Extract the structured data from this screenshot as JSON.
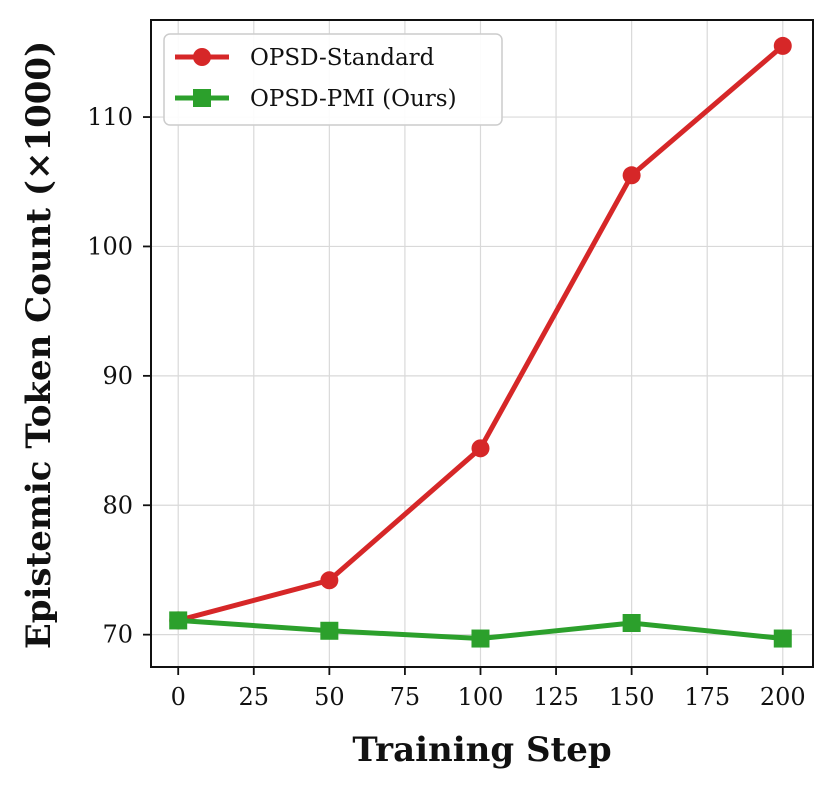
{
  "chart_data": {
    "type": "line",
    "title": "",
    "xlabel": "Training Step",
    "ylabel": "Epistemic Token Count (×1000)",
    "x": [
      0,
      50,
      100,
      150,
      200
    ],
    "xticks": [
      "0",
      "25",
      "50",
      "75",
      "100",
      "125",
      "150",
      "175",
      "200"
    ],
    "yticks": [
      "70",
      "80",
      "90",
      "100",
      "110"
    ],
    "xlim": [
      -9,
      210
    ],
    "ylim": [
      67.5,
      117.5
    ],
    "grid": true,
    "legend_position": "upper-left",
    "series": [
      {
        "name": "OPSD-Standard",
        "values": [
          71.1,
          74.2,
          84.4,
          105.5,
          115.5
        ],
        "color": "#d62728",
        "marker": "circle"
      },
      {
        "name": "OPSD-PMI (Ours)",
        "values": [
          71.1,
          70.3,
          69.7,
          70.9,
          69.7
        ],
        "color": "#2ca02c",
        "marker": "square"
      }
    ]
  }
}
